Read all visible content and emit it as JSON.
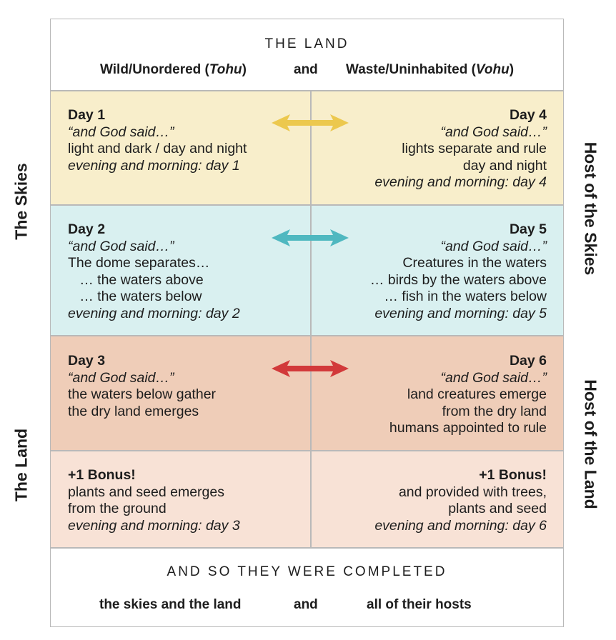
{
  "header": {
    "title": "THE LAND",
    "left_text": "Wild/Unordered (",
    "left_italic": "Tohu",
    "left_close": ")",
    "connector": "and",
    "right_text": "Waste/Uninhabited (",
    "right_italic": "Vohu",
    "right_close": ")"
  },
  "side_labels": {
    "left_top": "The Skies",
    "left_bottom": "The Land",
    "right_top": "Host of the Skies",
    "right_bottom": "Host of the Land"
  },
  "rows": [
    {
      "left": {
        "heading": "Day 1",
        "said": "“and God said…”",
        "lines": [
          "light and dark / day and night"
        ],
        "closing": "evening and morning: day 1"
      },
      "right": {
        "heading": "Day 4",
        "said": "“and God said…”",
        "lines": [
          "lights separate and rule",
          "day and night"
        ],
        "closing": "evening and morning: day 4"
      },
      "arrow_color": "#ecc84e"
    },
    {
      "left": {
        "heading": "Day 2",
        "said": "“and God said…”",
        "lines": [
          "The dome separates…",
          "   … the waters above",
          "   … the waters below"
        ],
        "closing": "evening and morning: day 2"
      },
      "right": {
        "heading": "Day 5",
        "said": "“and God said…”",
        "lines": [
          "Creatures in the waters",
          "… birds by the waters above",
          "… fish in the waters below"
        ],
        "closing": "evening and morning: day 5"
      },
      "arrow_color": "#4fb8c0"
    },
    {
      "left": {
        "heading": "Day 3",
        "said": "“and God said…”",
        "lines": [
          "the waters below gather",
          "the dry land emerges"
        ],
        "closing": ""
      },
      "right": {
        "heading": "Day 6",
        "said": "“and God said…”",
        "lines": [
          "land creatures emerge",
          "from the dry land",
          "humans appointed to rule"
        ],
        "closing": ""
      },
      "arrow_color": "#d2393a"
    },
    {
      "left": {
        "heading": "+1 Bonus!",
        "said": "",
        "lines": [
          "plants and seed emerges",
          "from the ground"
        ],
        "closing": "evening and morning: day 3"
      },
      "right": {
        "heading": "+1 Bonus!",
        "said": "",
        "lines": [
          "and provided with trees,",
          "plants and seed"
        ],
        "closing": "evening and morning: day 6"
      }
    }
  ],
  "footer": {
    "title": "AND SO THEY WERE COMPLETED",
    "left": "the skies and the land",
    "connector": "and",
    "right": "all of their hosts"
  },
  "colors": {
    "row1": "#f8eecb",
    "row2": "#d9f0f0",
    "row3": "#efcdb8",
    "row4": "#f8e2d6",
    "border": "#b9b9b9"
  }
}
